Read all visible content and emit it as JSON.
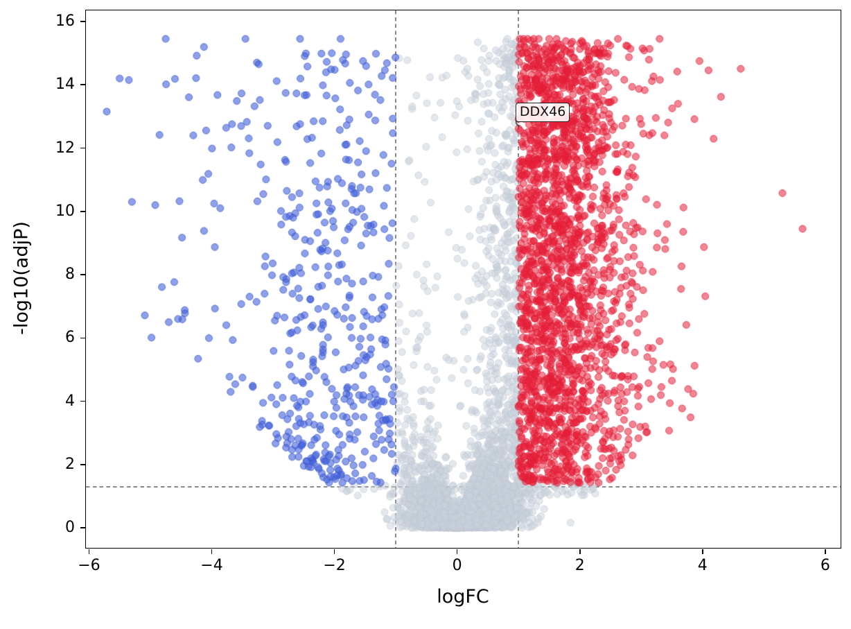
{
  "chart_data": {
    "type": "scatter",
    "subtype": "volcano-plot",
    "title": "",
    "xlabel": "logFC",
    "ylabel": "-log10(adjP)",
    "xlim": [
      -6.05,
      6.25
    ],
    "ylim": [
      -0.63,
      16.35
    ],
    "xticks": [
      -6,
      -4,
      -2,
      0,
      2,
      4,
      6
    ],
    "yticks": [
      0,
      2,
      4,
      6,
      8,
      10,
      12,
      14,
      16
    ],
    "grid": false,
    "legend": null,
    "point_radius": 5,
    "thresholds": {
      "logfc_up": 1,
      "logfc_down": -1,
      "significance_neglog10p": 1.3
    },
    "annotation": {
      "label": "DDX46",
      "x": 1.03,
      "y": 12.55
    },
    "colors": {
      "up_fill": "rgba(232,32,58,0.55)",
      "up_edge": "rgba(222,26,52,0.75)",
      "down_fill": "rgba(66,96,219,0.6)",
      "down_edge": "rgba(56,86,205,0.8)",
      "ns_fill": "rgba(201,209,219,0.5)",
      "ns_edge": "rgba(187,196,207,0.6)",
      "threshold_line": "#8a8a8a",
      "axis": "#000000",
      "background": "#ffffff"
    },
    "generation": {
      "seed": 1337,
      "y_cap": 15.45,
      "color_min_y": 1.42,
      "x_clamp": [
        -5.72,
        5.9
      ],
      "groups": [
        {
          "name": "non-significant-core",
          "count": 3800,
          "x_mean": 0.12,
          "x_sd": 0.45,
          "model": "funnel",
          "y_base": 0.32,
          "y_slope": 3.1
        },
        {
          "name": "up-main",
          "count": 2450,
          "x_mean": 1.52,
          "x_sd": 0.6,
          "model": "spread",
          "y_min": 1.0,
          "y_range": 14.4,
          "y_pow": 0.95,
          "floor_from": 2.3,
          "floor_slope": 1.5
        },
        {
          "name": "up-wide",
          "count": 150,
          "x_mean": 2.55,
          "x_sd": 0.85,
          "model": "spread",
          "y_min": 1.6,
          "y_range": 13.8,
          "y_pow": 1.0,
          "floor_from": 2.3,
          "floor_slope": 1.5
        },
        {
          "name": "down-main",
          "count": 480,
          "x_mean": -1.85,
          "x_sd": 0.85,
          "model": "spread",
          "y_min": 1.0,
          "y_range": 14.0,
          "y_pow": 1.35,
          "floor_from": 2.0,
          "floor_slope": 1.5
        },
        {
          "name": "down-far",
          "count": 50,
          "x_mean": -3.6,
          "x_sd": 0.85,
          "model": "spread",
          "y_min": 5.2,
          "y_range": 10.2,
          "y_pow": 1.0,
          "floor_from": 2.0,
          "floor_slope": 1.5
        }
      ],
      "extra_points": [
        {
          "x": 1.03,
          "y": 12.55
        },
        {
          "x": 5.63,
          "y": 9.45
        },
        {
          "x": -5.5,
          "y": 14.2
        },
        {
          "x": -5.35,
          "y": 14.15
        },
        {
          "x": -5.3,
          "y": 10.3
        },
        {
          "x": -4.92,
          "y": 10.2
        },
        {
          "x": -4.75,
          "y": 15.45
        },
        {
          "x": -4.7,
          "y": 6.5
        },
        {
          "x": -4.55,
          "y": 6.6
        },
        {
          "x": -4.3,
          "y": 12.4
        },
        {
          "x": -3.45,
          "y": 15.45
        },
        {
          "x": -2.56,
          "y": 15.45
        },
        {
          "x": -1.9,
          "y": 15.45
        },
        {
          "x": 1.02,
          "y": 15.45
        },
        {
          "x": 1.08,
          "y": 15.45
        },
        {
          "x": 1.15,
          "y": 15.45
        },
        {
          "x": 1.25,
          "y": 15.45
        },
        {
          "x": 1.33,
          "y": 15.45
        },
        {
          "x": 1.5,
          "y": 15.45
        },
        {
          "x": 1.62,
          "y": 15.45
        },
        {
          "x": 2.62,
          "y": 15.45
        },
        {
          "x": 3.3,
          "y": 15.45
        },
        {
          "x": 0.82,
          "y": 15.45
        },
        {
          "x": 0.93,
          "y": 14.8
        },
        {
          "x": 4.3,
          "y": 13.62
        },
        {
          "x": 3.95,
          "y": 14.75
        },
        {
          "x": 3.6,
          "y": 13.4
        },
        {
          "x": 3.42,
          "y": 9.6
        },
        {
          "x": 3.65,
          "y": 7.55
        },
        {
          "x": 3.3,
          "y": 5.9
        },
        {
          "x": 2.95,
          "y": 4.4
        },
        {
          "x": 3.5,
          "y": 4.65
        },
        {
          "x": 2.3,
          "y": 1.7
        }
      ]
    }
  }
}
